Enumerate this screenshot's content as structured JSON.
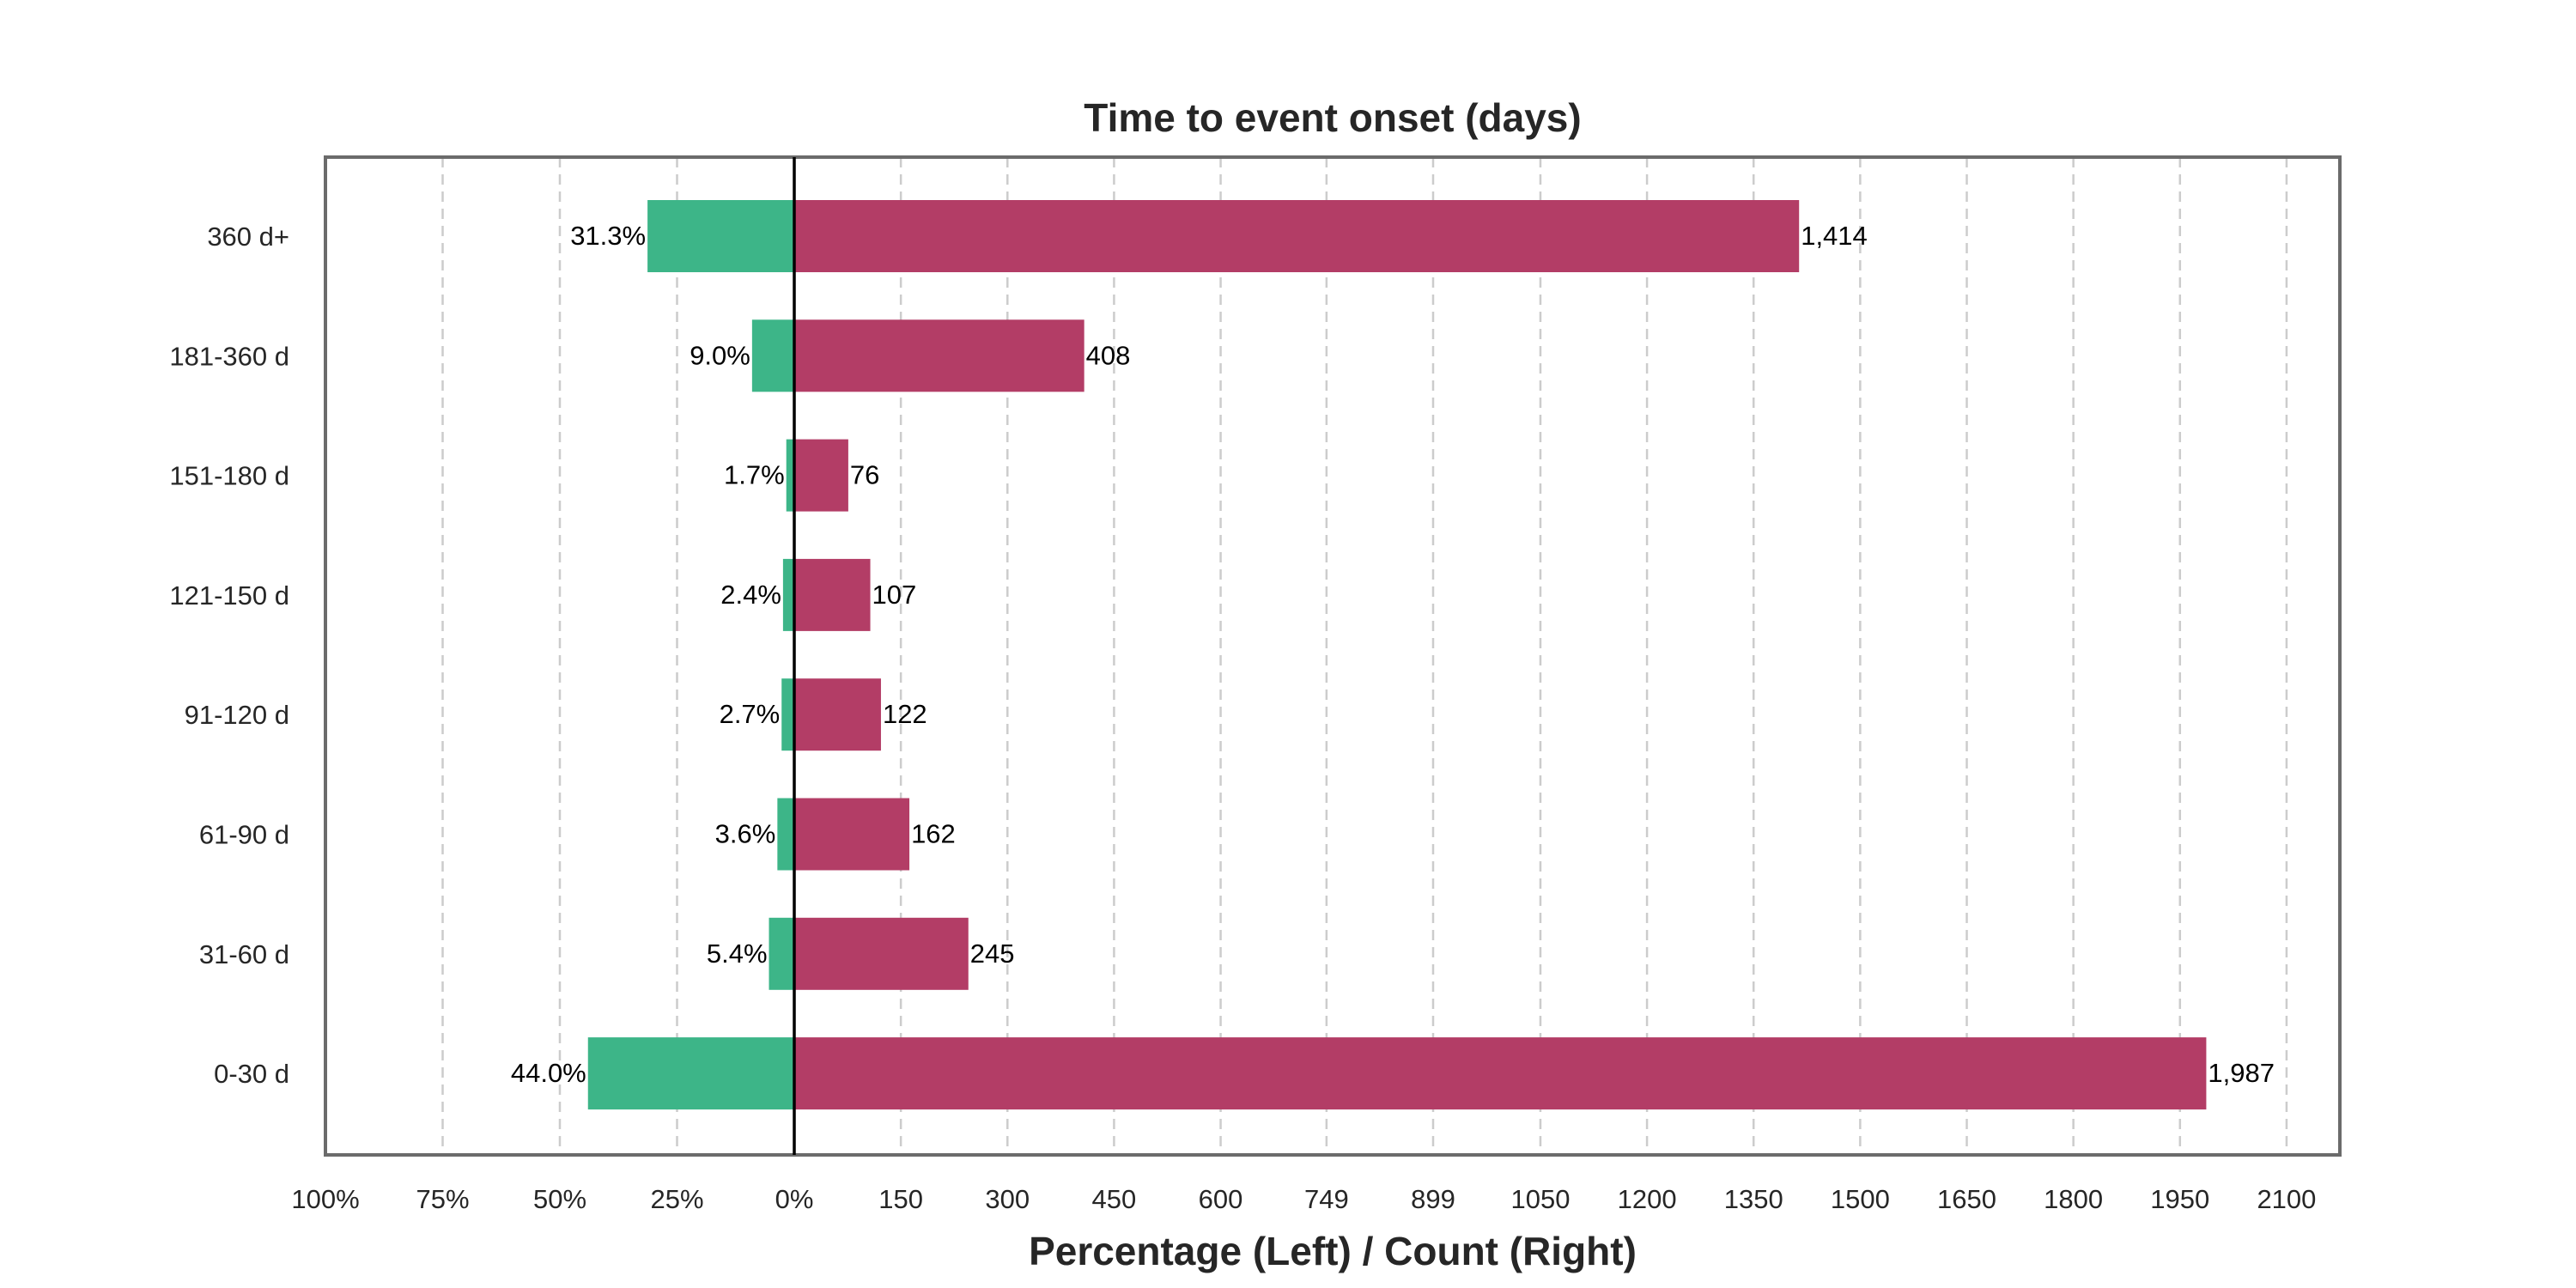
{
  "chart_data": {
    "type": "bar",
    "orientation": "horizontal",
    "title": "Time to event onset (days)",
    "xlabel": "Percentage (Left) / Count (Right)",
    "ylabel": "",
    "grid": true,
    "categories": [
      "360 d+",
      "181-360 d",
      "151-180 d",
      "121-150 d",
      "91-120 d",
      "61-90 d",
      "31-60 d",
      "0-30 d"
    ],
    "series": [
      {
        "values": [
          31.3,
          9.0,
          1.7,
          2.4,
          2.7,
          3.6,
          5.4,
          44.0
        ],
        "labels": [
          "31.3%",
          "9.0%",
          "1.7%",
          "2.4%",
          "2.7%",
          "3.6%",
          "5.4%",
          "44.0%"
        ],
        "color": "#3db588"
      },
      {
        "values": [
          1414,
          408,
          76,
          107,
          122,
          162,
          245,
          1987
        ],
        "labels": [
          "1,414",
          "408",
          "76",
          "107",
          "122",
          "162",
          "245",
          "1,987"
        ],
        "color": "#b33d66"
      }
    ],
    "left_axis": {
      "range": [
        100,
        0
      ],
      "ticks": [
        100,
        75,
        50,
        25,
        0
      ],
      "tick_labels": [
        "100%",
        "75%",
        "50%",
        "25%",
        "0%"
      ]
    },
    "right_axis": {
      "range": [
        0,
        2175
      ],
      "ticks": [
        150,
        300,
        450,
        600,
        749,
        899,
        1050,
        1200,
        1350,
        1500,
        1650,
        1800,
        1950,
        2100
      ],
      "tick_labels": [
        "150",
        "300",
        "450",
        "600",
        "749",
        "899",
        "1050",
        "1200",
        "1350",
        "1500",
        "1650",
        "1800",
        "1950",
        "2100"
      ]
    },
    "colors": {
      "grid": "#cccccc",
      "frame": "#6b6b6b",
      "zero_line": "#000000"
    }
  }
}
